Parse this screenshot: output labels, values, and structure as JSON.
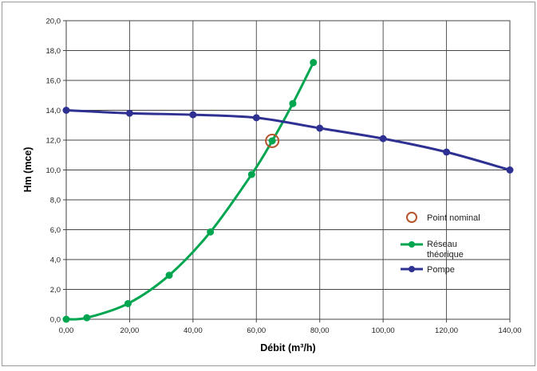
{
  "chart_data": {
    "type": "line",
    "xlabel": "Débit (m³/h)",
    "ylabel": "Hm (mce)",
    "xlim": [
      0,
      140
    ],
    "ylim": [
      0,
      20
    ],
    "grid": true,
    "legend_position": "right",
    "x_ticks": [
      "0,00",
      "20,00",
      "40,00",
      "60,00",
      "80,00",
      "100,00",
      "120,00",
      "140,00"
    ],
    "y_ticks": [
      "0,0",
      "2,0",
      "4,0",
      "6,0",
      "8,0",
      "10,0",
      "12,0",
      "14,0",
      "16,0",
      "18,0",
      "20,0"
    ],
    "series": [
      {
        "name": "Réseau théorique",
        "color": "#00a550",
        "marker": "circle",
        "smooth": true,
        "points": [
          [
            0,
            0.0
          ],
          [
            6.5,
            0.1
          ],
          [
            19.5,
            1.05
          ],
          [
            32.5,
            2.95
          ],
          [
            45.5,
            5.85
          ],
          [
            58.5,
            9.7
          ],
          [
            65,
            11.95
          ],
          [
            71.5,
            14.45
          ],
          [
            78,
            17.2
          ]
        ]
      },
      {
        "name": "Pompe",
        "color": "#2e3192",
        "marker": "circle",
        "smooth": true,
        "points": [
          [
            0,
            14.0
          ],
          [
            20,
            13.8
          ],
          [
            40,
            13.7
          ],
          [
            60,
            13.5
          ],
          [
            80,
            12.8
          ],
          [
            100,
            12.1
          ],
          [
            120,
            11.2
          ],
          [
            140,
            10.0
          ]
        ]
      }
    ],
    "annotations": [
      {
        "name": "Point nominal",
        "x": 65,
        "y": 11.95,
        "color": "#b5542a",
        "marker": "open-circle"
      }
    ],
    "legend": {
      "point_nominal": "Point nominal",
      "reseau_line1": "Réseau",
      "reseau_line2": "théorique",
      "pompe": "Pompe"
    }
  }
}
